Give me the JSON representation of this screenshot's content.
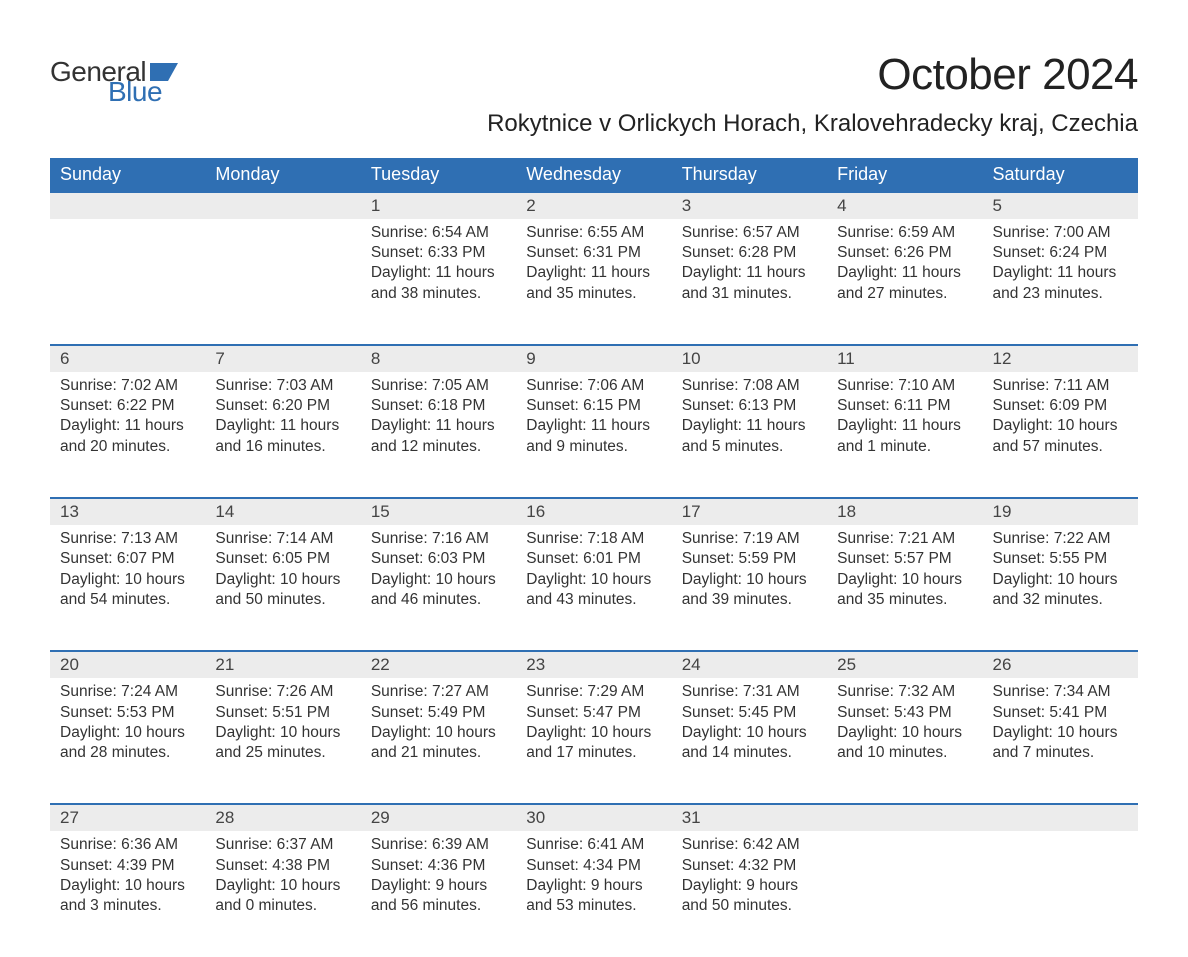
{
  "brand": {
    "top": "General",
    "bottom": "Blue"
  },
  "title": "October 2024",
  "location": "Rokytnice v Orlickych Horach, Kralovehradecky kraj, Czechia",
  "colors": {
    "header_bg": "#2f6fb3",
    "header_text": "#ffffff",
    "daynum_bg": "#ececec",
    "daynum_border": "#2f6fb3",
    "body_text": "#333333",
    "page_bg": "#ffffff",
    "logo_blue": "#2f6fb3"
  },
  "typography": {
    "title_fontsize": 44,
    "location_fontsize": 24,
    "header_fontsize": 18,
    "cell_fontsize": 15.5,
    "daynum_fontsize": 17
  },
  "days_of_week": [
    "Sunday",
    "Monday",
    "Tuesday",
    "Wednesday",
    "Thursday",
    "Friday",
    "Saturday"
  ],
  "weeks": [
    {
      "nums": [
        "",
        "",
        "1",
        "2",
        "3",
        "4",
        "5"
      ],
      "cells": [
        null,
        null,
        {
          "sunrise": "Sunrise: 6:54 AM",
          "sunset": "Sunset: 6:33 PM",
          "d1": "Daylight: 11 hours",
          "d2": "and 38 minutes."
        },
        {
          "sunrise": "Sunrise: 6:55 AM",
          "sunset": "Sunset: 6:31 PM",
          "d1": "Daylight: 11 hours",
          "d2": "and 35 minutes."
        },
        {
          "sunrise": "Sunrise: 6:57 AM",
          "sunset": "Sunset: 6:28 PM",
          "d1": "Daylight: 11 hours",
          "d2": "and 31 minutes."
        },
        {
          "sunrise": "Sunrise: 6:59 AM",
          "sunset": "Sunset: 6:26 PM",
          "d1": "Daylight: 11 hours",
          "d2": "and 27 minutes."
        },
        {
          "sunrise": "Sunrise: 7:00 AM",
          "sunset": "Sunset: 6:24 PM",
          "d1": "Daylight: 11 hours",
          "d2": "and 23 minutes."
        }
      ]
    },
    {
      "nums": [
        "6",
        "7",
        "8",
        "9",
        "10",
        "11",
        "12"
      ],
      "cells": [
        {
          "sunrise": "Sunrise: 7:02 AM",
          "sunset": "Sunset: 6:22 PM",
          "d1": "Daylight: 11 hours",
          "d2": "and 20 minutes."
        },
        {
          "sunrise": "Sunrise: 7:03 AM",
          "sunset": "Sunset: 6:20 PM",
          "d1": "Daylight: 11 hours",
          "d2": "and 16 minutes."
        },
        {
          "sunrise": "Sunrise: 7:05 AM",
          "sunset": "Sunset: 6:18 PM",
          "d1": "Daylight: 11 hours",
          "d2": "and 12 minutes."
        },
        {
          "sunrise": "Sunrise: 7:06 AM",
          "sunset": "Sunset: 6:15 PM",
          "d1": "Daylight: 11 hours",
          "d2": "and 9 minutes."
        },
        {
          "sunrise": "Sunrise: 7:08 AM",
          "sunset": "Sunset: 6:13 PM",
          "d1": "Daylight: 11 hours",
          "d2": "and 5 minutes."
        },
        {
          "sunrise": "Sunrise: 7:10 AM",
          "sunset": "Sunset: 6:11 PM",
          "d1": "Daylight: 11 hours",
          "d2": "and 1 minute."
        },
        {
          "sunrise": "Sunrise: 7:11 AM",
          "sunset": "Sunset: 6:09 PM",
          "d1": "Daylight: 10 hours",
          "d2": "and 57 minutes."
        }
      ]
    },
    {
      "nums": [
        "13",
        "14",
        "15",
        "16",
        "17",
        "18",
        "19"
      ],
      "cells": [
        {
          "sunrise": "Sunrise: 7:13 AM",
          "sunset": "Sunset: 6:07 PM",
          "d1": "Daylight: 10 hours",
          "d2": "and 54 minutes."
        },
        {
          "sunrise": "Sunrise: 7:14 AM",
          "sunset": "Sunset: 6:05 PM",
          "d1": "Daylight: 10 hours",
          "d2": "and 50 minutes."
        },
        {
          "sunrise": "Sunrise: 7:16 AM",
          "sunset": "Sunset: 6:03 PM",
          "d1": "Daylight: 10 hours",
          "d2": "and 46 minutes."
        },
        {
          "sunrise": "Sunrise: 7:18 AM",
          "sunset": "Sunset: 6:01 PM",
          "d1": "Daylight: 10 hours",
          "d2": "and 43 minutes."
        },
        {
          "sunrise": "Sunrise: 7:19 AM",
          "sunset": "Sunset: 5:59 PM",
          "d1": "Daylight: 10 hours",
          "d2": "and 39 minutes."
        },
        {
          "sunrise": "Sunrise: 7:21 AM",
          "sunset": "Sunset: 5:57 PM",
          "d1": "Daylight: 10 hours",
          "d2": "and 35 minutes."
        },
        {
          "sunrise": "Sunrise: 7:22 AM",
          "sunset": "Sunset: 5:55 PM",
          "d1": "Daylight: 10 hours",
          "d2": "and 32 minutes."
        }
      ]
    },
    {
      "nums": [
        "20",
        "21",
        "22",
        "23",
        "24",
        "25",
        "26"
      ],
      "cells": [
        {
          "sunrise": "Sunrise: 7:24 AM",
          "sunset": "Sunset: 5:53 PM",
          "d1": "Daylight: 10 hours",
          "d2": "and 28 minutes."
        },
        {
          "sunrise": "Sunrise: 7:26 AM",
          "sunset": "Sunset: 5:51 PM",
          "d1": "Daylight: 10 hours",
          "d2": "and 25 minutes."
        },
        {
          "sunrise": "Sunrise: 7:27 AM",
          "sunset": "Sunset: 5:49 PM",
          "d1": "Daylight: 10 hours",
          "d2": "and 21 minutes."
        },
        {
          "sunrise": "Sunrise: 7:29 AM",
          "sunset": "Sunset: 5:47 PM",
          "d1": "Daylight: 10 hours",
          "d2": "and 17 minutes."
        },
        {
          "sunrise": "Sunrise: 7:31 AM",
          "sunset": "Sunset: 5:45 PM",
          "d1": "Daylight: 10 hours",
          "d2": "and 14 minutes."
        },
        {
          "sunrise": "Sunrise: 7:32 AM",
          "sunset": "Sunset: 5:43 PM",
          "d1": "Daylight: 10 hours",
          "d2": "and 10 minutes."
        },
        {
          "sunrise": "Sunrise: 7:34 AM",
          "sunset": "Sunset: 5:41 PM",
          "d1": "Daylight: 10 hours",
          "d2": "and 7 minutes."
        }
      ]
    },
    {
      "nums": [
        "27",
        "28",
        "29",
        "30",
        "31",
        "",
        ""
      ],
      "cells": [
        {
          "sunrise": "Sunrise: 6:36 AM",
          "sunset": "Sunset: 4:39 PM",
          "d1": "Daylight: 10 hours",
          "d2": "and 3 minutes."
        },
        {
          "sunrise": "Sunrise: 6:37 AM",
          "sunset": "Sunset: 4:38 PM",
          "d1": "Daylight: 10 hours",
          "d2": "and 0 minutes."
        },
        {
          "sunrise": "Sunrise: 6:39 AM",
          "sunset": "Sunset: 4:36 PM",
          "d1": "Daylight: 9 hours",
          "d2": "and 56 minutes."
        },
        {
          "sunrise": "Sunrise: 6:41 AM",
          "sunset": "Sunset: 4:34 PM",
          "d1": "Daylight: 9 hours",
          "d2": "and 53 minutes."
        },
        {
          "sunrise": "Sunrise: 6:42 AM",
          "sunset": "Sunset: 4:32 PM",
          "d1": "Daylight: 9 hours",
          "d2": "and 50 minutes."
        },
        null,
        null
      ]
    }
  ]
}
